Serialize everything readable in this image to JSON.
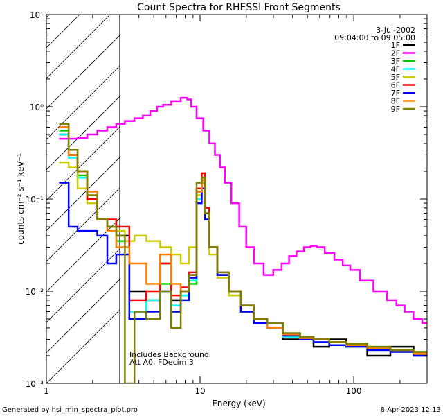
{
  "chart_data": {
    "type": "line",
    "title": "Count Spectra for RHESSI Front Segments",
    "xlabel": "Energy (keV)",
    "ylabel": "counts cm⁻² s⁻¹ keV⁻¹",
    "xscale": "log",
    "yscale": "log",
    "xlim": [
      1,
      300
    ],
    "ylim": [
      0.001,
      10
    ],
    "x_ticks": [
      {
        "value": 1,
        "label": "1"
      },
      {
        "value": 10,
        "label": "10"
      },
      {
        "value": 100,
        "label": "100"
      }
    ],
    "y_ticks": [
      {
        "value": 0.001,
        "label": "10⁻³"
      },
      {
        "value": 0.01,
        "label": "10⁻²"
      },
      {
        "value": 0.1,
        "label": "10⁻¹"
      },
      {
        "value": 1,
        "label": "10⁰"
      },
      {
        "value": 10,
        "label": "10¹"
      }
    ],
    "date_label": "3-Jul-2002",
    "time_range": "09:04:00 to 09:05:00",
    "hatched_region_x": [
      1,
      3
    ],
    "annotations": [
      "Includes Background",
      "Att A0, FDecim 3"
    ],
    "series": [
      {
        "name": "1F",
        "color": "#000000",
        "points": [
          [
            1.3,
            0.5
          ],
          [
            1.5,
            0.3
          ],
          [
            1.7,
            0.2
          ],
          [
            2.0,
            0.1
          ],
          [
            2.3,
            0.06
          ],
          [
            2.7,
            0.05
          ],
          [
            3.0,
            0.04
          ],
          [
            4.0,
            0.01
          ],
          [
            5.0,
            0.008
          ],
          [
            6.0,
            0.02
          ],
          [
            7.0,
            0.008
          ],
          [
            8.0,
            0.01
          ],
          [
            9.0,
            0.015
          ],
          [
            10.0,
            0.12
          ],
          [
            10.5,
            0.15
          ],
          [
            11.0,
            0.08
          ],
          [
            12.0,
            0.03
          ],
          [
            14.0,
            0.015
          ],
          [
            17.0,
            0.01
          ],
          [
            20.0,
            0.006
          ],
          [
            25.0,
            0.005
          ],
          [
            30.0,
            0.004
          ],
          [
            40.0,
            0.003
          ],
          [
            50.0,
            0.003
          ],
          [
            60.0,
            0.0025
          ],
          [
            80.0,
            0.003
          ],
          [
            100.0,
            0.0025
          ],
          [
            150.0,
            0.002
          ],
          [
            200.0,
            0.0025
          ],
          [
            300.0,
            0.002
          ]
        ]
      },
      {
        "name": "2F",
        "color": "#ff00ff",
        "points": [
          [
            1.3,
            0.45
          ],
          [
            1.5,
            0.45
          ],
          [
            1.7,
            0.46
          ],
          [
            2.0,
            0.5
          ],
          [
            2.3,
            0.55
          ],
          [
            2.7,
            0.6
          ],
          [
            3.0,
            0.65
          ],
          [
            3.5,
            0.7
          ],
          [
            4.0,
            0.75
          ],
          [
            4.5,
            0.8
          ],
          [
            5.0,
            0.9
          ],
          [
            5.5,
            1.0
          ],
          [
            6.0,
            1.05
          ],
          [
            7.0,
            1.15
          ],
          [
            8.0,
            1.25
          ],
          [
            8.5,
            1.2
          ],
          [
            9.0,
            1.0
          ],
          [
            10.0,
            0.75
          ],
          [
            11.0,
            0.55
          ],
          [
            12.0,
            0.4
          ],
          [
            13.0,
            0.3
          ],
          [
            14.0,
            0.22
          ],
          [
            15.0,
            0.15
          ],
          [
            17.0,
            0.09
          ],
          [
            19.0,
            0.05
          ],
          [
            21.0,
            0.03
          ],
          [
            24.0,
            0.02
          ],
          [
            28.0,
            0.015
          ],
          [
            32.0,
            0.017
          ],
          [
            36.0,
            0.02
          ],
          [
            40.0,
            0.024
          ],
          [
            45.0,
            0.027
          ],
          [
            50.0,
            0.03
          ],
          [
            55.0,
            0.031
          ],
          [
            60.0,
            0.03
          ],
          [
            70.0,
            0.026
          ],
          [
            80.0,
            0.022
          ],
          [
            90.0,
            0.019
          ],
          [
            100.0,
            0.017
          ],
          [
            120.0,
            0.013
          ],
          [
            150.0,
            0.01
          ],
          [
            180.0,
            0.008
          ],
          [
            200.0,
            0.007
          ],
          [
            230.0,
            0.006
          ],
          [
            260.0,
            0.005
          ],
          [
            300.0,
            0.0045
          ]
        ]
      },
      {
        "name": "3F",
        "color": "#00cc00",
        "points": [
          [
            1.3,
            0.55
          ],
          [
            1.5,
            0.3
          ],
          [
            1.7,
            0.18
          ],
          [
            2.0,
            0.1
          ],
          [
            2.3,
            0.06
          ],
          [
            2.7,
            0.05
          ],
          [
            3.0,
            0.035
          ],
          [
            4.0,
            0.005
          ],
          [
            5.0,
            0.008
          ],
          [
            6.0,
            0.012
          ],
          [
            7.0,
            0.006
          ],
          [
            8.0,
            0.009
          ],
          [
            9.0,
            0.012
          ],
          [
            10.0,
            0.1
          ],
          [
            10.5,
            0.17
          ],
          [
            11.0,
            0.07
          ],
          [
            12.0,
            0.03
          ],
          [
            14.0,
            0.015
          ],
          [
            17.0,
            0.009
          ],
          [
            20.0,
            0.006
          ],
          [
            25.0,
            0.0045
          ],
          [
            30.0,
            0.004
          ],
          [
            40.0,
            0.0035
          ],
          [
            50.0,
            0.0032
          ],
          [
            60.0,
            0.003
          ],
          [
            80.0,
            0.0028
          ],
          [
            100.0,
            0.0027
          ],
          [
            150.0,
            0.0025
          ],
          [
            200.0,
            0.0023
          ],
          [
            300.0,
            0.0022
          ]
        ]
      },
      {
        "name": "4F",
        "color": "#00ffff",
        "points": [
          [
            1.3,
            0.5
          ],
          [
            1.5,
            0.28
          ],
          [
            1.7,
            0.17
          ],
          [
            2.0,
            0.1
          ],
          [
            2.3,
            0.06
          ],
          [
            2.7,
            0.045
          ],
          [
            3.0,
            0.03
          ],
          [
            4.0,
            0.006
          ],
          [
            5.0,
            0.008
          ],
          [
            6.0,
            0.01
          ],
          [
            7.0,
            0.007
          ],
          [
            8.0,
            0.009
          ],
          [
            9.0,
            0.013
          ],
          [
            10.0,
            0.1
          ],
          [
            10.5,
            0.16
          ],
          [
            11.0,
            0.07
          ],
          [
            12.0,
            0.03
          ],
          [
            14.0,
            0.016
          ],
          [
            17.0,
            0.01
          ],
          [
            20.0,
            0.007
          ],
          [
            25.0,
            0.005
          ],
          [
            30.0,
            0.004
          ],
          [
            40.0,
            0.0032
          ],
          [
            50.0,
            0.003
          ],
          [
            60.0,
            0.0028
          ],
          [
            80.0,
            0.0026
          ],
          [
            100.0,
            0.0025
          ],
          [
            150.0,
            0.0023
          ],
          [
            200.0,
            0.0022
          ],
          [
            300.0,
            0.002
          ]
        ]
      },
      {
        "name": "5F",
        "color": "#cccc00",
        "points": [
          [
            1.3,
            0.25
          ],
          [
            1.5,
            0.22
          ],
          [
            1.7,
            0.13
          ],
          [
            2.0,
            0.09
          ],
          [
            2.3,
            0.06
          ],
          [
            2.7,
            0.05
          ],
          [
            3.0,
            0.045
          ],
          [
            3.5,
            0.035
          ],
          [
            4.0,
            0.04
          ],
          [
            5.0,
            0.035
          ],
          [
            6.0,
            0.03
          ],
          [
            7.0,
            0.025
          ],
          [
            8.0,
            0.02
          ],
          [
            9.0,
            0.03
          ],
          [
            10.0,
            0.11
          ],
          [
            10.5,
            0.15
          ],
          [
            11.0,
            0.06
          ],
          [
            12.0,
            0.025
          ],
          [
            14.0,
            0.014
          ],
          [
            17.0,
            0.009
          ],
          [
            20.0,
            0.006
          ],
          [
            25.0,
            0.0045
          ],
          [
            30.0,
            0.004
          ],
          [
            40.0,
            0.0033
          ],
          [
            50.0,
            0.003
          ],
          [
            60.0,
            0.0028
          ],
          [
            80.0,
            0.0026
          ],
          [
            100.0,
            0.0025
          ],
          [
            150.0,
            0.0023
          ],
          [
            200.0,
            0.0022
          ],
          [
            300.0,
            0.002
          ]
        ]
      },
      {
        "name": "6F",
        "color": "#ff0000",
        "points": [
          [
            1.3,
            0.6
          ],
          [
            1.5,
            0.3
          ],
          [
            1.7,
            0.2
          ],
          [
            2.0,
            0.1
          ],
          [
            2.3,
            0.06
          ],
          [
            2.7,
            0.06
          ],
          [
            3.0,
            0.05
          ],
          [
            4.0,
            0.008
          ],
          [
            5.0,
            0.01
          ],
          [
            6.0,
            0.02
          ],
          [
            7.0,
            0.009
          ],
          [
            8.0,
            0.011
          ],
          [
            9.0,
            0.016
          ],
          [
            10.0,
            0.13
          ],
          [
            10.5,
            0.19
          ],
          [
            11.0,
            0.08
          ],
          [
            12.0,
            0.03
          ],
          [
            14.0,
            0.016
          ],
          [
            17.0,
            0.01
          ],
          [
            20.0,
            0.007
          ],
          [
            25.0,
            0.005
          ],
          [
            30.0,
            0.004
          ],
          [
            40.0,
            0.0034
          ],
          [
            50.0,
            0.0031
          ],
          [
            60.0,
            0.003
          ],
          [
            80.0,
            0.0028
          ],
          [
            100.0,
            0.0026
          ],
          [
            150.0,
            0.0024
          ],
          [
            200.0,
            0.0023
          ],
          [
            300.0,
            0.0021
          ]
        ]
      },
      {
        "name": "7F",
        "color": "#0000ff",
        "points": [
          [
            1.3,
            0.15
          ],
          [
            1.5,
            0.05
          ],
          [
            1.7,
            0.045
          ],
          [
            2.0,
            0.045
          ],
          [
            2.3,
            0.04
          ],
          [
            2.7,
            0.02
          ],
          [
            3.0,
            0.025
          ],
          [
            4.0,
            0.005
          ],
          [
            5.0,
            0.006
          ],
          [
            6.0,
            0.01
          ],
          [
            7.0,
            0.006
          ],
          [
            8.0,
            0.008
          ],
          [
            9.0,
            0.014
          ],
          [
            10.0,
            0.09
          ],
          [
            10.5,
            0.13
          ],
          [
            11.0,
            0.06
          ],
          [
            12.0,
            0.03
          ],
          [
            14.0,
            0.015
          ],
          [
            17.0,
            0.01
          ],
          [
            20.0,
            0.006
          ],
          [
            25.0,
            0.0045
          ],
          [
            30.0,
            0.004
          ],
          [
            40.0,
            0.0033
          ],
          [
            50.0,
            0.003
          ],
          [
            60.0,
            0.0028
          ],
          [
            80.0,
            0.0026
          ],
          [
            100.0,
            0.0025
          ],
          [
            150.0,
            0.0023
          ],
          [
            200.0,
            0.0022
          ],
          [
            300.0,
            0.002
          ]
        ]
      },
      {
        "name": "8F",
        "color": "#ff8000",
        "points": [
          [
            1.3,
            0.6
          ],
          [
            1.5,
            0.3
          ],
          [
            1.7,
            0.2
          ],
          [
            2.0,
            0.12
          ],
          [
            2.3,
            0.06
          ],
          [
            2.7,
            0.045
          ],
          [
            3.0,
            0.03
          ],
          [
            4.0,
            0.02
          ],
          [
            5.0,
            0.012
          ],
          [
            6.0,
            0.025
          ],
          [
            7.0,
            0.012
          ],
          [
            8.0,
            0.01
          ],
          [
            9.0,
            0.015
          ],
          [
            10.0,
            0.12
          ],
          [
            10.5,
            0.16
          ],
          [
            11.0,
            0.07
          ],
          [
            12.0,
            0.03
          ],
          [
            14.0,
            0.016
          ],
          [
            17.0,
            0.01
          ],
          [
            20.0,
            0.007
          ],
          [
            25.0,
            0.005
          ],
          [
            30.0,
            0.004
          ],
          [
            40.0,
            0.0034
          ],
          [
            50.0,
            0.0031
          ],
          [
            60.0,
            0.003
          ],
          [
            80.0,
            0.0028
          ],
          [
            100.0,
            0.0026
          ],
          [
            150.0,
            0.0024
          ],
          [
            200.0,
            0.0023
          ],
          [
            300.0,
            0.0021
          ]
        ]
      },
      {
        "name": "9F",
        "color": "#808000",
        "points": [
          [
            1.3,
            0.65
          ],
          [
            1.5,
            0.34
          ],
          [
            1.7,
            0.2
          ],
          [
            2.0,
            0.11
          ],
          [
            2.3,
            0.06
          ],
          [
            2.7,
            0.05
          ],
          [
            3.0,
            0.04
          ],
          [
            3.5,
            0.001
          ],
          [
            4.0,
            0.006
          ],
          [
            5.0,
            0.005
          ],
          [
            6.0,
            0.01
          ],
          [
            7.0,
            0.004
          ],
          [
            8.0,
            0.01
          ],
          [
            9.0,
            0.015
          ],
          [
            10.0,
            0.15
          ],
          [
            10.5,
            0.17
          ],
          [
            11.0,
            0.07
          ],
          [
            12.0,
            0.03
          ],
          [
            14.0,
            0.016
          ],
          [
            17.0,
            0.01
          ],
          [
            20.0,
            0.007
          ],
          [
            25.0,
            0.005
          ],
          [
            30.0,
            0.0045
          ],
          [
            40.0,
            0.0035
          ],
          [
            50.0,
            0.0032
          ],
          [
            60.0,
            0.003
          ],
          [
            80.0,
            0.0028
          ],
          [
            100.0,
            0.0027
          ],
          [
            150.0,
            0.0025
          ],
          [
            200.0,
            0.0023
          ],
          [
            300.0,
            0.0022
          ]
        ]
      }
    ]
  },
  "footer": {
    "generated_by": "Generated by hsi_min_spectra_plot.pro",
    "date_time": "8-Apr-2023 12:13"
  },
  "colors": {
    "background": "#ffffff",
    "axis": "#000000"
  }
}
